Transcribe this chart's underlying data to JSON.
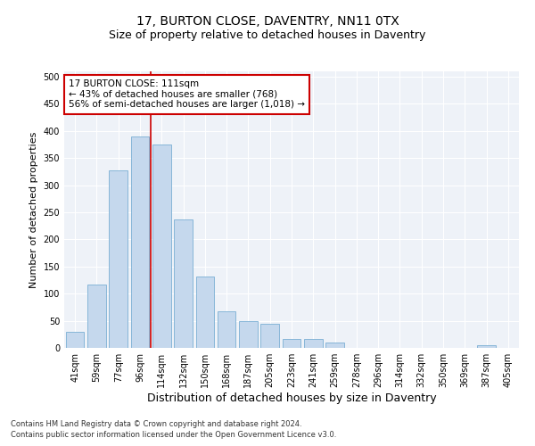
{
  "title": "17, BURTON CLOSE, DAVENTRY, NN11 0TX",
  "subtitle": "Size of property relative to detached houses in Daventry",
  "xlabel": "Distribution of detached houses by size in Daventry",
  "ylabel": "Number of detached properties",
  "categories": [
    "41sqm",
    "59sqm",
    "77sqm",
    "96sqm",
    "114sqm",
    "132sqm",
    "150sqm",
    "168sqm",
    "187sqm",
    "205sqm",
    "223sqm",
    "241sqm",
    "259sqm",
    "278sqm",
    "296sqm",
    "314sqm",
    "332sqm",
    "350sqm",
    "369sqm",
    "387sqm",
    "405sqm"
  ],
  "bar_heights": [
    30,
    117,
    328,
    390,
    375,
    237,
    131,
    67,
    50,
    45,
    16,
    16,
    10,
    0,
    0,
    0,
    0,
    0,
    0,
    5,
    0
  ],
  "bar_color": "#c5d8ed",
  "bar_edge_color": "#7aafd4",
  "annotation_text": "17 BURTON CLOSE: 111sqm\n← 43% of detached houses are smaller (768)\n56% of semi-detached houses are larger (1,018) →",
  "annotation_box_color": "#ffffff",
  "annotation_box_edge": "#cc0000",
  "vline_color": "#cc0000",
  "ylim": [
    0,
    510
  ],
  "yticks": [
    0,
    50,
    100,
    150,
    200,
    250,
    300,
    350,
    400,
    450,
    500
  ],
  "background_color": "#eef2f8",
  "footer_line1": "Contains HM Land Registry data © Crown copyright and database right 2024.",
  "footer_line2": "Contains public sector information licensed under the Open Government Licence v3.0.",
  "title_fontsize": 10,
  "subtitle_fontsize": 9,
  "xlabel_fontsize": 9,
  "ylabel_fontsize": 8,
  "annotation_fontsize": 7.5,
  "tick_fontsize": 7
}
